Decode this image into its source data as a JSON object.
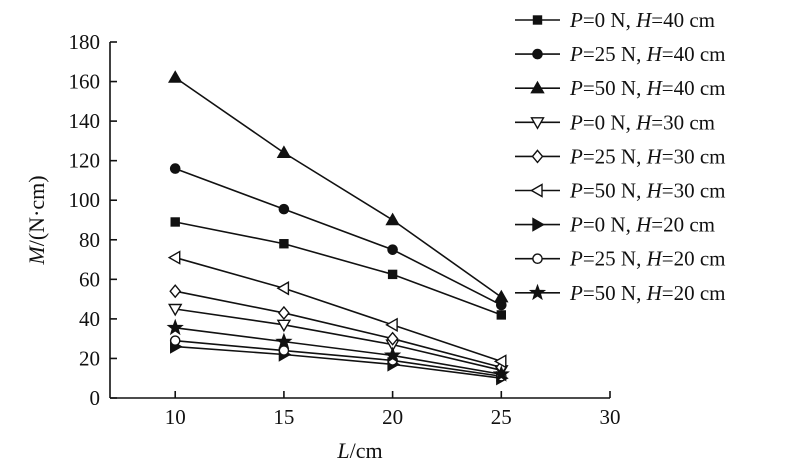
{
  "chart_data": {
    "type": "line",
    "xlabel": "L/cm",
    "ylabel": "M/(N·cm)",
    "x_ticks": [
      10,
      15,
      20,
      25,
      30
    ],
    "y_ticks": [
      0,
      20,
      40,
      60,
      80,
      100,
      120,
      140,
      160,
      180
    ],
    "xlim": [
      7,
      30
    ],
    "ylim": [
      0,
      180
    ],
    "grid": false,
    "legend_position": "top-right",
    "x": [
      10,
      15,
      20,
      25
    ],
    "series": [
      {
        "name": "P=0 N, H=40 cm",
        "marker": "filled-square",
        "values": [
          89,
          78,
          62.5,
          42
        ]
      },
      {
        "name": "P=25 N, H=40 cm",
        "marker": "filled-circle",
        "values": [
          116,
          95.5,
          75,
          47
        ]
      },
      {
        "name": "P=50 N, H=40 cm",
        "marker": "filled-triangle-up",
        "values": [
          162,
          124,
          90,
          51
        ]
      },
      {
        "name": "P=0 N, H=30 cm",
        "marker": "open-triangle-down",
        "values": [
          45,
          37,
          27,
          14
        ]
      },
      {
        "name": "P=25 N, H=30 cm",
        "marker": "open-diamond",
        "values": [
          54,
          43,
          30,
          15.5
        ]
      },
      {
        "name": "P=50 N, H=30 cm",
        "marker": "open-triangle-left",
        "values": [
          71,
          55.5,
          37,
          18.5
        ]
      },
      {
        "name": "P=0 N, H=20 cm",
        "marker": "filled-triangle-right",
        "values": [
          26,
          22,
          17,
          10
        ]
      },
      {
        "name": "P=25 N, H=20 cm",
        "marker": "open-circle",
        "values": [
          29,
          24,
          19,
          11
        ]
      },
      {
        "name": "P=50 N, H=20 cm",
        "marker": "filled-star",
        "values": [
          35.5,
          28.5,
          21.5,
          12
        ]
      }
    ]
  }
}
